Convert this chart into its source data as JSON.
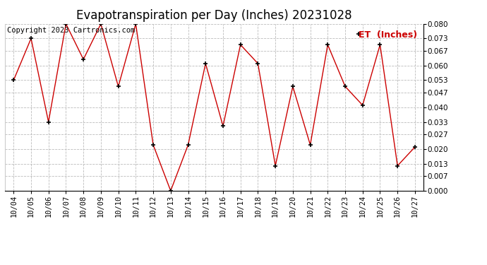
{
  "title": "Evapotranspiration per Day (Inches) 20231028",
  "legend_label": "ET  (Inches)",
  "copyright_text": "Copyright 2023 Cartronics.com",
  "dates": [
    "10/04",
    "10/05",
    "10/06",
    "10/07",
    "10/08",
    "10/09",
    "10/10",
    "10/11",
    "10/12",
    "10/13",
    "10/14",
    "10/15",
    "10/16",
    "10/17",
    "10/18",
    "10/19",
    "10/20",
    "10/21",
    "10/22",
    "10/23",
    "10/24",
    "10/25",
    "10/26",
    "10/27"
  ],
  "values": [
    0.053,
    0.073,
    0.033,
    0.08,
    0.063,
    0.08,
    0.05,
    0.08,
    0.022,
    0.0,
    0.022,
    0.061,
    0.031,
    0.07,
    0.061,
    0.012,
    0.05,
    0.022,
    0.07,
    0.05,
    0.041,
    0.07,
    0.012,
    0.021
  ],
  "ylim": [
    0.0,
    0.08
  ],
  "yticks": [
    0.0,
    0.007,
    0.013,
    0.02,
    0.027,
    0.033,
    0.04,
    0.047,
    0.053,
    0.06,
    0.067,
    0.073,
    0.08
  ],
  "line_color": "#cc0000",
  "marker_color": "#000000",
  "bg_color": "#ffffff",
  "grid_color": "#bbbbbb",
  "title_fontsize": 12,
  "tick_fontsize": 7.5,
  "legend_fontsize": 9,
  "copyright_fontsize": 7.5
}
